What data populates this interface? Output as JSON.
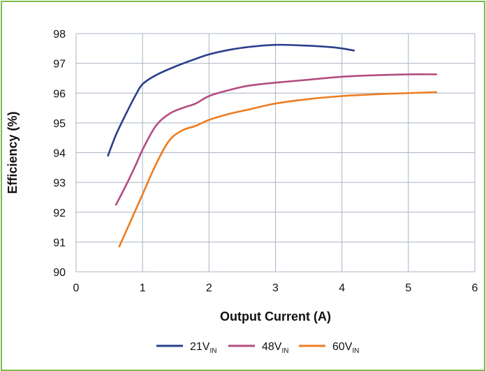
{
  "chart_data": {
    "type": "line",
    "xlabel": "Output Current (A)",
    "ylabel": "Efficiency (%)",
    "xlim": [
      0,
      6
    ],
    "ylim": [
      90,
      98
    ],
    "xticks": [
      "0",
      "1",
      "2",
      "3",
      "4",
      "5",
      "6"
    ],
    "yticks": [
      "90",
      "91",
      "92",
      "93",
      "94",
      "95",
      "96",
      "97",
      "98"
    ],
    "grid": true,
    "legend_position": "bottom",
    "series": [
      {
        "name": "21V",
        "subscript": "IN",
        "color": "#2b3f8c",
        "points": [
          [
            0.48,
            93.9
          ],
          [
            0.6,
            94.6
          ],
          [
            0.75,
            95.3
          ],
          [
            0.9,
            95.95
          ],
          [
            1.0,
            96.3
          ],
          [
            1.2,
            96.6
          ],
          [
            1.5,
            96.9
          ],
          [
            1.8,
            97.15
          ],
          [
            2.0,
            97.3
          ],
          [
            2.3,
            97.45
          ],
          [
            2.6,
            97.55
          ],
          [
            3.0,
            97.62
          ],
          [
            3.4,
            97.6
          ],
          [
            3.8,
            97.55
          ],
          [
            4.0,
            97.5
          ],
          [
            4.18,
            97.43
          ]
        ]
      },
      {
        "name": "48V",
        "subscript": "IN",
        "color": "#b24c82",
        "points": [
          [
            0.6,
            92.25
          ],
          [
            0.75,
            92.9
          ],
          [
            0.9,
            93.6
          ],
          [
            1.0,
            94.1
          ],
          [
            1.2,
            94.9
          ],
          [
            1.4,
            95.3
          ],
          [
            1.6,
            95.5
          ],
          [
            1.8,
            95.65
          ],
          [
            2.0,
            95.9
          ],
          [
            2.3,
            96.1
          ],
          [
            2.6,
            96.25
          ],
          [
            3.0,
            96.35
          ],
          [
            3.5,
            96.45
          ],
          [
            4.0,
            96.55
          ],
          [
            4.5,
            96.6
          ],
          [
            5.0,
            96.63
          ],
          [
            5.42,
            96.63
          ]
        ]
      },
      {
        "name": "60V",
        "subscript": "IN",
        "color": "#ec7d22",
        "points": [
          [
            0.65,
            90.85
          ],
          [
            0.8,
            91.6
          ],
          [
            1.0,
            92.6
          ],
          [
            1.2,
            93.6
          ],
          [
            1.4,
            94.4
          ],
          [
            1.6,
            94.75
          ],
          [
            1.8,
            94.9
          ],
          [
            2.0,
            95.1
          ],
          [
            2.3,
            95.3
          ],
          [
            2.6,
            95.45
          ],
          [
            3.0,
            95.65
          ],
          [
            3.5,
            95.8
          ],
          [
            4.0,
            95.9
          ],
          [
            4.5,
            95.96
          ],
          [
            5.0,
            96.0
          ],
          [
            5.42,
            96.03
          ]
        ]
      }
    ]
  }
}
